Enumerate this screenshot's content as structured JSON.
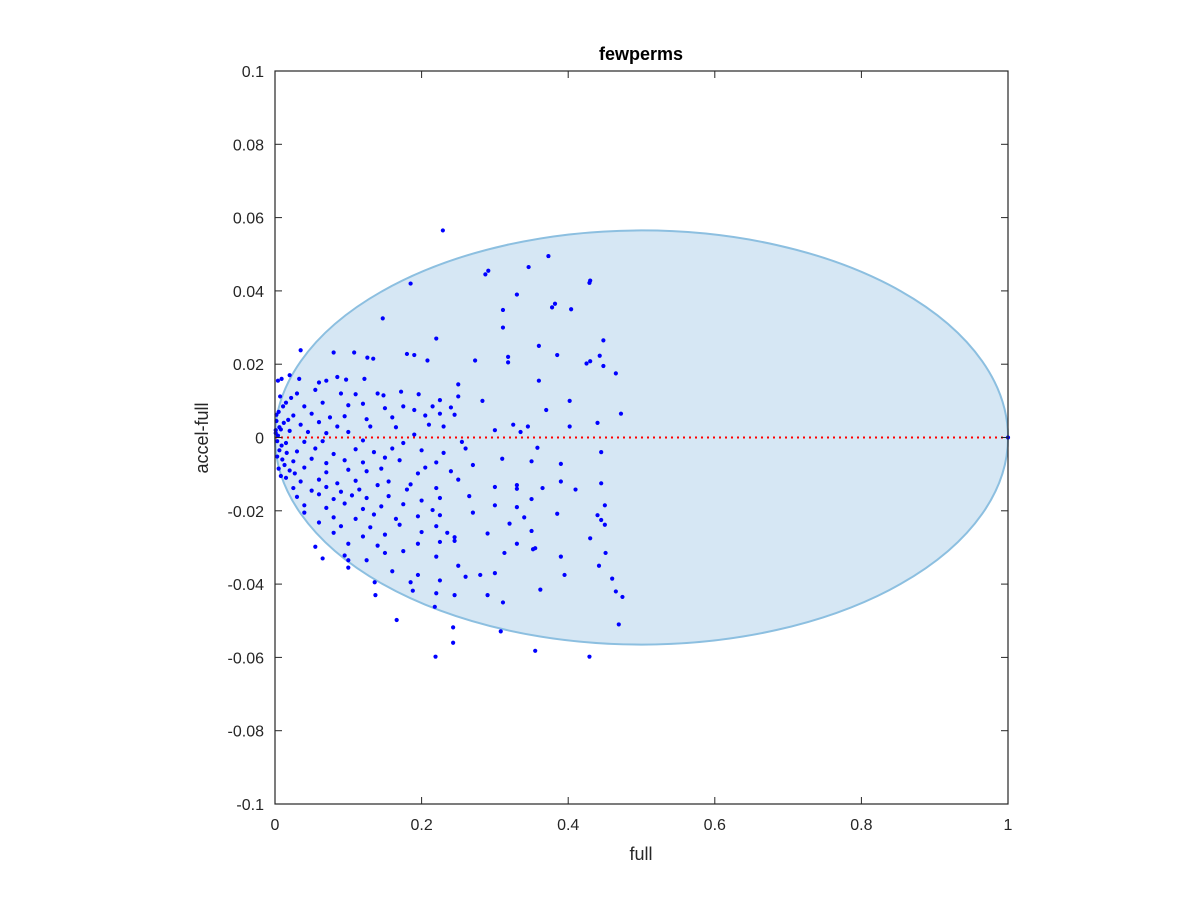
{
  "chart_data": {
    "type": "scatter",
    "title": "fewperms",
    "xlabel": "full",
    "ylabel": "accel-full",
    "xlim": [
      0,
      1
    ],
    "ylim": [
      -0.1,
      0.1
    ],
    "xticks": [
      0,
      0.2,
      0.4,
      0.6,
      0.8,
      1
    ],
    "xtick_labels": [
      "0",
      "0.2",
      "0.4",
      "0.6",
      "0.8",
      "1"
    ],
    "yticks": [
      -0.1,
      -0.08,
      -0.06,
      -0.04,
      -0.02,
      0,
      0.02,
      0.04,
      0.06,
      0.08,
      0.1
    ],
    "ytick_labels": [
      "-0.1",
      "-0.08",
      "-0.06",
      "-0.04",
      "-0.02",
      "0",
      "0.02",
      "0.04",
      "0.06",
      "0.08",
      "0.1"
    ],
    "grid": false,
    "box": true,
    "colors": {
      "points": "#0000ff",
      "ellipse_fill": "#d6e7f4",
      "ellipse_edge": "#8cbfe0",
      "zero_line": "#ff0000",
      "axes": "#262626"
    },
    "ellipse": {
      "center": [
        0.5,
        0
      ],
      "semi_axis_x": 0.5,
      "semi_axis_y": 0.0565
    },
    "zero_line": {
      "y": 0,
      "style": "dotted"
    },
    "series": [
      {
        "points": [
          [
            0.229,
            0.0565
          ],
          [
            0.291,
            0.0455
          ],
          [
            0.287,
            0.0445
          ],
          [
            0.373,
            0.0495
          ],
          [
            0.346,
            0.0465
          ],
          [
            0.185,
            0.042
          ],
          [
            0.43,
            0.0428
          ],
          [
            0.429,
            0.0422
          ],
          [
            0.33,
            0.039
          ],
          [
            0.382,
            0.0365
          ],
          [
            0.378,
            0.0355
          ],
          [
            0.404,
            0.035
          ],
          [
            0.311,
            0.0348
          ],
          [
            0.311,
            0.03
          ],
          [
            0.147,
            0.0325
          ],
          [
            0.22,
            0.027
          ],
          [
            0.448,
            0.0265
          ],
          [
            0.36,
            0.025
          ],
          [
            0.035,
            0.0238
          ],
          [
            0.08,
            0.0232
          ],
          [
            0.108,
            0.0232
          ],
          [
            0.126,
            0.0218
          ],
          [
            0.134,
            0.0215
          ],
          [
            0.18,
            0.0228
          ],
          [
            0.19,
            0.0225
          ],
          [
            0.208,
            0.021
          ],
          [
            0.273,
            0.021
          ],
          [
            0.318,
            0.022
          ],
          [
            0.318,
            0.0205
          ],
          [
            0.443,
            0.0223
          ],
          [
            0.43,
            0.0208
          ],
          [
            0.448,
            0.0195
          ],
          [
            0.425,
            0.0202
          ],
          [
            0.465,
            0.0175
          ],
          [
            0.385,
            0.0225
          ],
          [
            0.009,
            0.016
          ],
          [
            0.004,
            0.0155
          ],
          [
            0.02,
            0.017
          ],
          [
            0.033,
            0.016
          ],
          [
            0.06,
            0.015
          ],
          [
            0.07,
            0.0155
          ],
          [
            0.085,
            0.0165
          ],
          [
            0.097,
            0.0158
          ],
          [
            0.122,
            0.016
          ],
          [
            0.25,
            0.0145
          ],
          [
            0.03,
            0.012
          ],
          [
            0.055,
            0.013
          ],
          [
            0.09,
            0.012
          ],
          [
            0.11,
            0.0118
          ],
          [
            0.14,
            0.012
          ],
          [
            0.148,
            0.0115
          ],
          [
            0.172,
            0.0125
          ],
          [
            0.196,
            0.0118
          ],
          [
            0.25,
            0.0112
          ],
          [
            0.36,
            0.0155
          ],
          [
            0.015,
            0.0095
          ],
          [
            0.04,
            0.0085
          ],
          [
            0.065,
            0.0095
          ],
          [
            0.1,
            0.0088
          ],
          [
            0.12,
            0.0092
          ],
          [
            0.15,
            0.008
          ],
          [
            0.175,
            0.0085
          ],
          [
            0.19,
            0.0075
          ],
          [
            0.215,
            0.0085
          ],
          [
            0.24,
            0.0082
          ],
          [
            0.283,
            0.01
          ],
          [
            0.402,
            0.01
          ],
          [
            0.37,
            0.0075
          ],
          [
            0.472,
            0.0065
          ],
          [
            0.225,
            0.0102
          ],
          [
            0.005,
            0.007
          ],
          [
            0.025,
            0.006
          ],
          [
            0.05,
            0.0065
          ],
          [
            0.075,
            0.0055
          ],
          [
            0.095,
            0.0058
          ],
          [
            0.125,
            0.005
          ],
          [
            0.16,
            0.0055
          ],
          [
            0.205,
            0.006
          ],
          [
            0.225,
            0.0065
          ],
          [
            0.245,
            0.0062
          ],
          [
            0.002,
            0.0045
          ],
          [
            0.012,
            0.004
          ],
          [
            0.035,
            0.0035
          ],
          [
            0.06,
            0.0042
          ],
          [
            0.085,
            0.003
          ],
          [
            0.13,
            0.003
          ],
          [
            0.165,
            0.0028
          ],
          [
            0.21,
            0.0035
          ],
          [
            0.23,
            0.003
          ],
          [
            0.325,
            0.0035
          ],
          [
            0.345,
            0.003
          ],
          [
            0.402,
            0.003
          ],
          [
            0.44,
            0.004
          ],
          [
            0.001,
            0.002
          ],
          [
            0.008,
            0.0022
          ],
          [
            0.02,
            0.0018
          ],
          [
            0.045,
            0.0015
          ],
          [
            0.07,
            0.0012
          ],
          [
            0.1,
            0.0015
          ],
          [
            0.19,
            0.0008
          ],
          [
            0.3,
            0.002
          ],
          [
            0.335,
            0.0015
          ],
          [
            0.003,
            -0.001
          ],
          [
            0.015,
            -0.0015
          ],
          [
            0.04,
            -0.0012
          ],
          [
            0.065,
            -0.001
          ],
          [
            0.12,
            -0.0008
          ],
          [
            0.175,
            -0.0015
          ],
          [
            0.255,
            -0.0012
          ],
          [
            0.006,
            -0.0035
          ],
          [
            0.03,
            -0.0038
          ],
          [
            0.055,
            -0.003
          ],
          [
            0.08,
            -0.0045
          ],
          [
            0.11,
            -0.0032
          ],
          [
            0.135,
            -0.004
          ],
          [
            0.16,
            -0.003
          ],
          [
            0.2,
            -0.0035
          ],
          [
            0.23,
            -0.0042
          ],
          [
            0.26,
            -0.003
          ],
          [
            0.358,
            -0.0028
          ],
          [
            0.445,
            -0.004
          ],
          [
            0.01,
            -0.006
          ],
          [
            0.025,
            -0.0065
          ],
          [
            0.05,
            -0.0058
          ],
          [
            0.07,
            -0.007
          ],
          [
            0.095,
            -0.0062
          ],
          [
            0.12,
            -0.0068
          ],
          [
            0.15,
            -0.0055
          ],
          [
            0.17,
            -0.0062
          ],
          [
            0.22,
            -0.0068
          ],
          [
            0.27,
            -0.0075
          ],
          [
            0.31,
            -0.0058
          ],
          [
            0.35,
            -0.0065
          ],
          [
            0.39,
            -0.0072
          ],
          [
            0.005,
            -0.0085
          ],
          [
            0.02,
            -0.009
          ],
          [
            0.04,
            -0.0082
          ],
          [
            0.07,
            -0.0095
          ],
          [
            0.1,
            -0.0088
          ],
          [
            0.125,
            -0.0092
          ],
          [
            0.145,
            -0.0085
          ],
          [
            0.195,
            -0.0098
          ],
          [
            0.205,
            -0.0082
          ],
          [
            0.24,
            -0.0092
          ],
          [
            0.015,
            -0.011
          ],
          [
            0.035,
            -0.012
          ],
          [
            0.06,
            -0.0115
          ],
          [
            0.085,
            -0.0125
          ],
          [
            0.11,
            -0.0118
          ],
          [
            0.155,
            -0.012
          ],
          [
            0.185,
            -0.0128
          ],
          [
            0.25,
            -0.0115
          ],
          [
            0.33,
            -0.013
          ],
          [
            0.39,
            -0.012
          ],
          [
            0.445,
            -0.0125
          ],
          [
            0.025,
            -0.0138
          ],
          [
            0.05,
            -0.0145
          ],
          [
            0.07,
            -0.0135
          ],
          [
            0.09,
            -0.0148
          ],
          [
            0.115,
            -0.0142
          ],
          [
            0.14,
            -0.013
          ],
          [
            0.18,
            -0.0142
          ],
          [
            0.22,
            -0.0138
          ],
          [
            0.3,
            -0.0135
          ],
          [
            0.33,
            -0.014
          ],
          [
            0.365,
            -0.0138
          ],
          [
            0.41,
            -0.0142
          ],
          [
            0.03,
            -0.0162
          ],
          [
            0.06,
            -0.0155
          ],
          [
            0.08,
            -0.0168
          ],
          [
            0.105,
            -0.0158
          ],
          [
            0.125,
            -0.0165
          ],
          [
            0.155,
            -0.016
          ],
          [
            0.2,
            -0.0172
          ],
          [
            0.225,
            -0.0165
          ],
          [
            0.265,
            -0.016
          ],
          [
            0.35,
            -0.0168
          ],
          [
            0.04,
            -0.0185
          ],
          [
            0.07,
            -0.0192
          ],
          [
            0.095,
            -0.018
          ],
          [
            0.12,
            -0.0195
          ],
          [
            0.145,
            -0.0188
          ],
          [
            0.175,
            -0.0182
          ],
          [
            0.215,
            -0.0198
          ],
          [
            0.3,
            -0.0185
          ],
          [
            0.33,
            -0.019
          ],
          [
            0.45,
            -0.0185
          ],
          [
            0.04,
            -0.0205
          ],
          [
            0.08,
            -0.0218
          ],
          [
            0.11,
            -0.0222
          ],
          [
            0.135,
            -0.021
          ],
          [
            0.165,
            -0.0222
          ],
          [
            0.195,
            -0.0215
          ],
          [
            0.225,
            -0.0212
          ],
          [
            0.27,
            -0.0205
          ],
          [
            0.34,
            -0.0218
          ],
          [
            0.385,
            -0.0208
          ],
          [
            0.44,
            -0.0212
          ],
          [
            0.06,
            -0.0232
          ],
          [
            0.09,
            -0.0242
          ],
          [
            0.13,
            -0.0245
          ],
          [
            0.17,
            -0.0238
          ],
          [
            0.22,
            -0.0242
          ],
          [
            0.32,
            -0.0235
          ],
          [
            0.445,
            -0.0225
          ],
          [
            0.45,
            -0.0238
          ],
          [
            0.08,
            -0.026
          ],
          [
            0.12,
            -0.027
          ],
          [
            0.15,
            -0.0265
          ],
          [
            0.2,
            -0.0258
          ],
          [
            0.235,
            -0.026
          ],
          [
            0.245,
            -0.0272
          ],
          [
            0.29,
            -0.0262
          ],
          [
            0.35,
            -0.0255
          ],
          [
            0.43,
            -0.0275
          ],
          [
            0.1,
            -0.029
          ],
          [
            0.14,
            -0.0295
          ],
          [
            0.195,
            -0.029
          ],
          [
            0.225,
            -0.0285
          ],
          [
            0.245,
            -0.0282
          ],
          [
            0.33,
            -0.029
          ],
          [
            0.355,
            -0.0302
          ],
          [
            0.055,
            -0.0298
          ],
          [
            0.175,
            -0.031
          ],
          [
            0.095,
            -0.0322
          ],
          [
            0.1,
            -0.0335
          ],
          [
            0.125,
            -0.0335
          ],
          [
            0.065,
            -0.033
          ],
          [
            0.15,
            -0.0315
          ],
          [
            0.22,
            -0.0325
          ],
          [
            0.313,
            -0.0315
          ],
          [
            0.352,
            -0.0305
          ],
          [
            0.39,
            -0.0325
          ],
          [
            0.451,
            -0.0315
          ],
          [
            0.1,
            -0.0355
          ],
          [
            0.16,
            -0.0365
          ],
          [
            0.195,
            -0.0375
          ],
          [
            0.25,
            -0.035
          ],
          [
            0.28,
            -0.0375
          ],
          [
            0.3,
            -0.037
          ],
          [
            0.442,
            -0.035
          ],
          [
            0.136,
            -0.0395
          ],
          [
            0.185,
            -0.0395
          ],
          [
            0.225,
            -0.039
          ],
          [
            0.26,
            -0.038
          ],
          [
            0.395,
            -0.0375
          ],
          [
            0.46,
            -0.0385
          ],
          [
            0.137,
            -0.043
          ],
          [
            0.188,
            -0.0418
          ],
          [
            0.22,
            -0.0425
          ],
          [
            0.245,
            -0.043
          ],
          [
            0.29,
            -0.043
          ],
          [
            0.362,
            -0.0415
          ],
          [
            0.465,
            -0.042
          ],
          [
            0.474,
            -0.0435
          ],
          [
            0.218,
            -0.0462
          ],
          [
            0.311,
            -0.045
          ],
          [
            0.166,
            -0.0498
          ],
          [
            0.243,
            -0.0518
          ],
          [
            0.469,
            -0.051
          ],
          [
            0.308,
            -0.0529
          ],
          [
            0.243,
            -0.056
          ],
          [
            0.355,
            -0.0582
          ],
          [
            0.219,
            -0.0598
          ],
          [
            0.429,
            -0.0598
          ],
          [
            1.0,
            0.0
          ],
          [
            0.004,
            0.0005
          ],
          [
            0.006,
            0.0028
          ],
          [
            0.009,
            -0.0022
          ],
          [
            0.002,
            0.0062
          ],
          [
            0.003,
            -0.0052
          ],
          [
            0.011,
            0.0085
          ],
          [
            0.013,
            -0.0075
          ],
          [
            0.001,
            0.0012
          ],
          [
            0.007,
            0.0112
          ],
          [
            0.008,
            -0.0105
          ],
          [
            0.018,
            0.0048
          ],
          [
            0.016,
            -0.0042
          ],
          [
            0.022,
            0.0108
          ],
          [
            0.027,
            -0.0098
          ]
        ]
      }
    ]
  }
}
